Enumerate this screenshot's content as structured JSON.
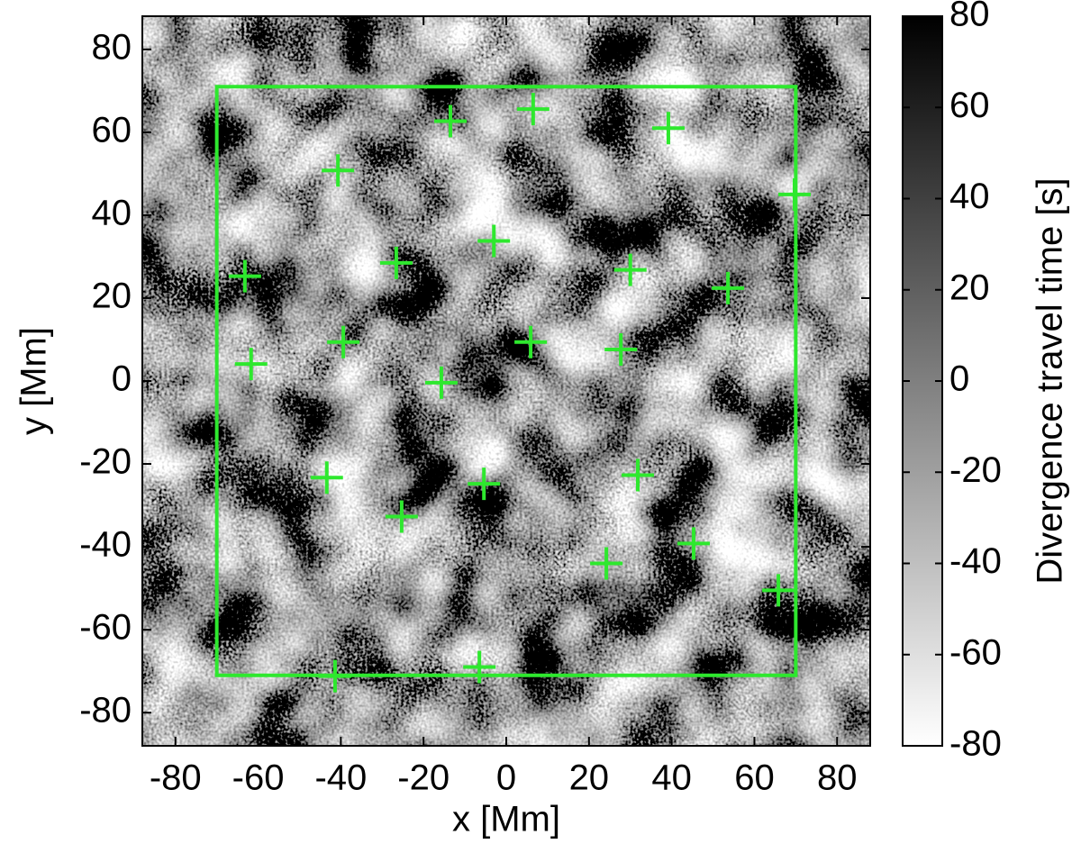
{
  "chart_data": {
    "type": "scatter",
    "xlabel": "x [Mm]",
    "ylabel": "y [Mm]",
    "xlim": [
      -88,
      88
    ],
    "ylim": [
      -88,
      88
    ],
    "xticks": [
      -80,
      -60,
      -40,
      -20,
      0,
      20,
      40,
      60,
      80
    ],
    "yticks": [
      -80,
      -60,
      -40,
      -20,
      0,
      20,
      40,
      60,
      80
    ],
    "series": [
      {
        "color": "#2ee82e",
        "x": [
          -13.5,
          6.5,
          39.2,
          -40.7,
          69.7,
          -3,
          -26.6,
          30,
          -63.2,
          53.6,
          5.9,
          -39.4,
          27.7,
          -61.7,
          -15.7,
          -43.4,
          -5.4,
          31.8,
          -25.3,
          45.3,
          24.2,
          65.8,
          -6.5,
          -41.4
        ],
        "values": [
          62.7,
          65.6,
          61,
          50.8,
          45,
          33.8,
          28.5,
          26.8,
          25.3,
          22.4,
          9.4,
          9.4,
          7.6,
          4.1,
          -0.4,
          -23.3,
          -24.8,
          -22.7,
          -32.7,
          -39.2,
          -44,
          -50.5,
          -69,
          -71.2
        ]
      }
    ],
    "box": {
      "color": "#2ee82e",
      "x": [
        -70,
        70
      ],
      "y": [
        -71,
        71
      ]
    },
    "colorbar": {
      "label": "Divergence travel time [s]",
      "lim": [
        -80,
        80
      ],
      "ticks": [
        -80,
        -60,
        -40,
        -20,
        0,
        20,
        40,
        60,
        80
      ],
      "colors": [
        "#ffffff",
        "#000000"
      ]
    }
  }
}
